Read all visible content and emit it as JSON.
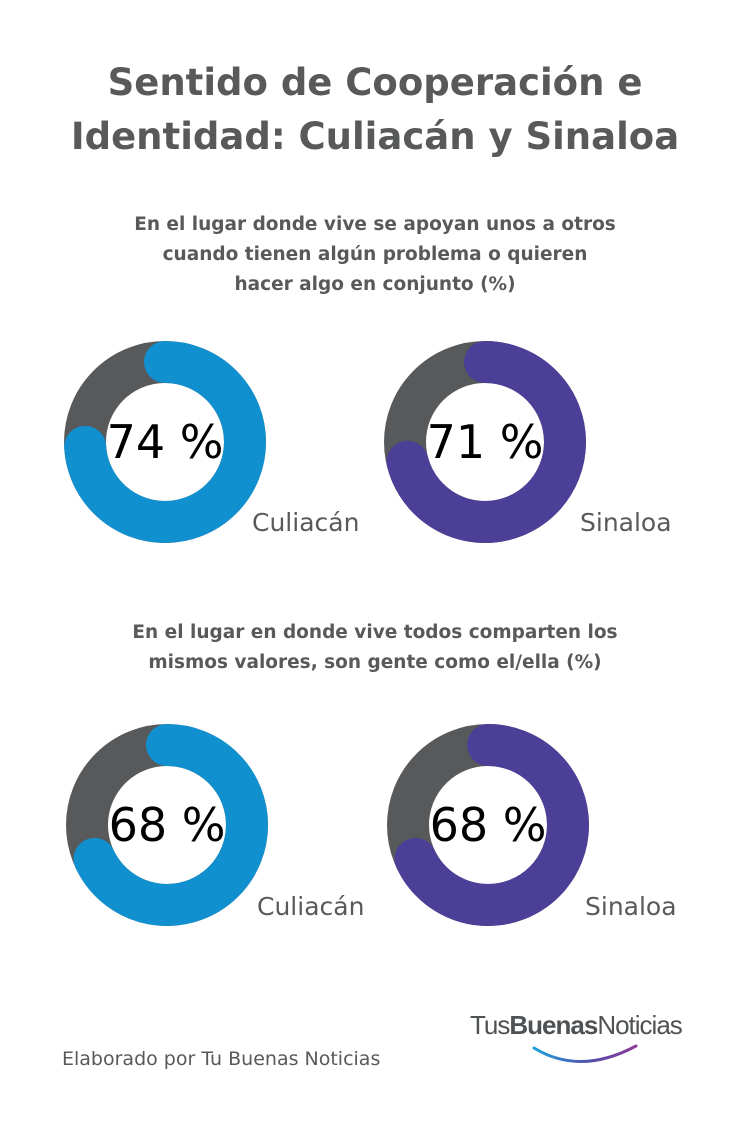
{
  "title_lines": [
    "Sentido de Cooperación e",
    "Identidad: Culiacán y Sinaloa"
  ],
  "chart_data": [
    {
      "type": "pie",
      "title_lines": [
        "En el lugar donde vive se apoyan unos a otros",
        "cuando tienen algún problema o quieren",
        "hacer algo en conjunto (%)"
      ],
      "slices": [
        {
          "label": "Culiacán",
          "value": 74,
          "display": "74 %",
          "color": "#1190d0"
        },
        {
          "label": "Sinaloa",
          "value": 71,
          "display": "71 %",
          "color": "#4b3f98"
        }
      ]
    },
    {
      "type": "pie",
      "title_lines": [
        "En el lugar en donde vive todos comparten los",
        "mismos valores, son gente como el/ella (%)"
      ],
      "slices": [
        {
          "label": "Culiacán",
          "value": 68,
          "display": "68 %",
          "color": "#1190d0"
        },
        {
          "label": "Sinaloa",
          "value": 68,
          "display": "68 %",
          "color": "#4b3f98"
        }
      ]
    }
  ],
  "remainder_color": "#58595b",
  "footer": "Elaborado por Tu Buenas Noticias",
  "logo": {
    "part1": "Tus",
    "part2": "Buenas",
    "part3": "Noticias"
  }
}
